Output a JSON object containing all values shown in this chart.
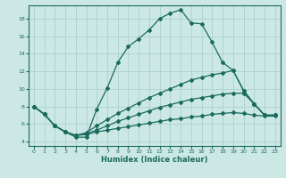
{
  "xlabel": "Humidex (Indice chaleur)",
  "xlim": [
    -0.5,
    23.5
  ],
  "ylim": [
    3.5,
    19.5
  ],
  "xticks": [
    0,
    1,
    2,
    3,
    4,
    5,
    6,
    7,
    8,
    9,
    10,
    11,
    12,
    13,
    14,
    15,
    16,
    17,
    18,
    19,
    20,
    21,
    22,
    23
  ],
  "yticks": [
    4,
    6,
    8,
    10,
    12,
    14,
    16,
    18
  ],
  "bg_color": "#cce8e5",
  "line_color": "#1a6b5e",
  "grid_color": "#afd4cf",
  "lines": [
    {
      "x": [
        0,
        1,
        2,
        3,
        4,
        5,
        6,
        7,
        8,
        9,
        10,
        11,
        12,
        13,
        14,
        15,
        16,
        17,
        18,
        19,
        20,
        21,
        22,
        23
      ],
      "y": [
        8.0,
        7.1,
        5.8,
        5.1,
        4.5,
        4.5,
        7.7,
        10.1,
        13.0,
        14.8,
        15.7,
        16.7,
        18.0,
        18.6,
        19.0,
        17.5,
        17.4,
        15.3,
        13.0,
        12.1,
        9.8,
        8.3,
        7.0,
        7.0
      ]
    },
    {
      "x": [
        0,
        1,
        2,
        3,
        4,
        5,
        6,
        7,
        8,
        9,
        10,
        11,
        12,
        13,
        14,
        15,
        16,
        17,
        18,
        19,
        20,
        21,
        22,
        23
      ],
      "y": [
        8.0,
        7.1,
        5.8,
        5.1,
        4.7,
        5.0,
        5.8,
        6.5,
        7.2,
        7.8,
        8.4,
        9.0,
        9.5,
        10.0,
        10.5,
        11.0,
        11.3,
        11.6,
        11.8,
        12.1,
        9.8,
        8.3,
        7.0,
        7.0
      ]
    },
    {
      "x": [
        0,
        1,
        2,
        3,
        4,
        5,
        6,
        7,
        8,
        9,
        10,
        11,
        12,
        13,
        14,
        15,
        16,
        17,
        18,
        19,
        20,
        21,
        22,
        23
      ],
      "y": [
        8.0,
        7.1,
        5.8,
        5.1,
        4.7,
        4.9,
        5.3,
        5.8,
        6.3,
        6.7,
        7.1,
        7.5,
        7.9,
        8.2,
        8.5,
        8.8,
        9.0,
        9.2,
        9.4,
        9.5,
        9.5,
        8.3,
        7.0,
        7.0
      ]
    },
    {
      "x": [
        0,
        1,
        2,
        3,
        4,
        5,
        6,
        7,
        8,
        9,
        10,
        11,
        12,
        13,
        14,
        15,
        16,
        17,
        18,
        19,
        20,
        21,
        22,
        23
      ],
      "y": [
        8.0,
        7.1,
        5.8,
        5.1,
        4.7,
        4.8,
        5.1,
        5.3,
        5.5,
        5.7,
        5.9,
        6.1,
        6.3,
        6.5,
        6.6,
        6.8,
        6.9,
        7.1,
        7.2,
        7.3,
        7.2,
        7.0,
        6.9,
        6.9
      ]
    }
  ]
}
